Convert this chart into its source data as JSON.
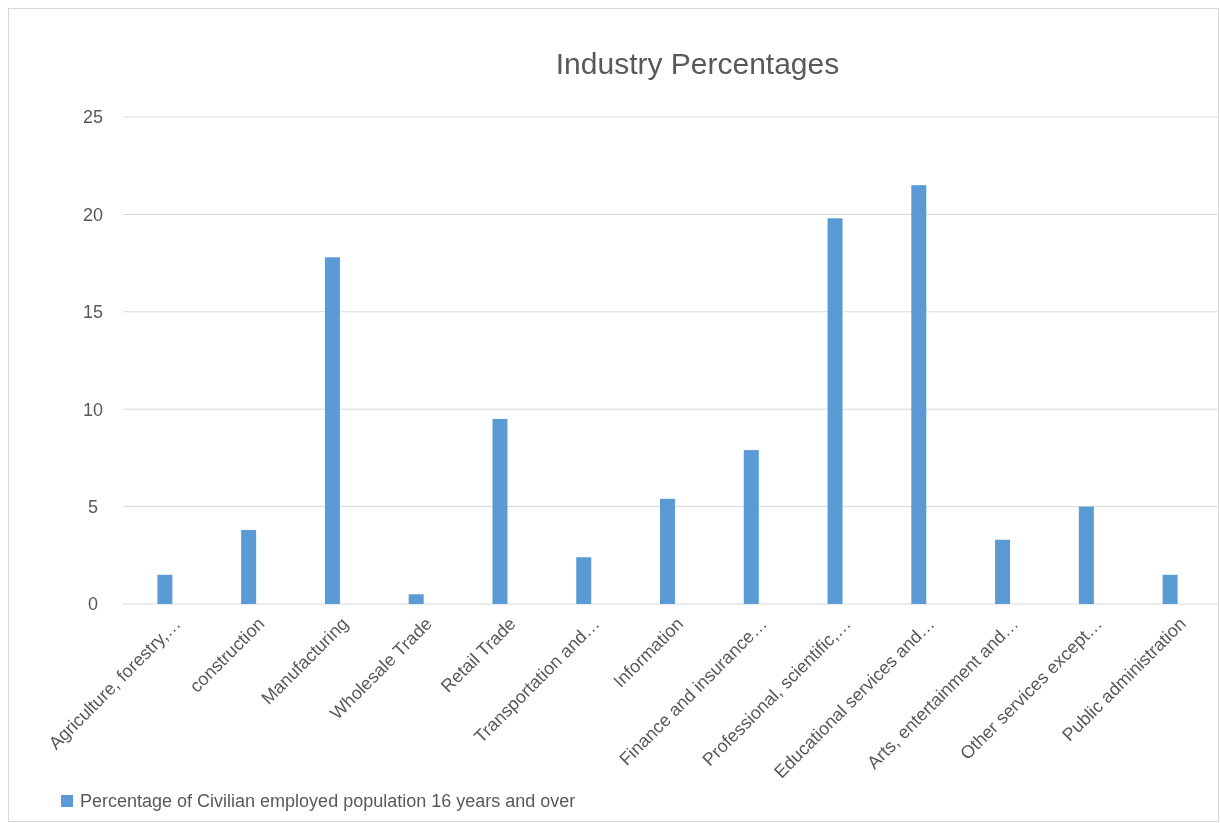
{
  "chart_data": {
    "type": "bar",
    "title": "Industry Percentages",
    "categories": [
      "Agriculture, forestry,…",
      "construction",
      "Manufacturing",
      "Wholesale Trade",
      "Retail Trade",
      "Transportation and…",
      "Information",
      "Finance and insurance…",
      "Professional, scientific,…",
      "Educational services and…",
      "Arts, entertainment and…",
      "Other services except…",
      "Public administration"
    ],
    "series": [
      {
        "name": "Percentage of Civilian employed population 16 years and over",
        "color": "#5b9bd5",
        "values": [
          1.5,
          3.8,
          17.8,
          0.5,
          9.5,
          2.4,
          5.4,
          7.9,
          19.8,
          21.5,
          3.3,
          5.0,
          1.5
        ]
      }
    ],
    "ylim": [
      0,
      25
    ],
    "yticks": [
      0,
      5,
      10,
      15,
      20,
      25
    ],
    "grid": "y",
    "legend": "bottom left"
  }
}
